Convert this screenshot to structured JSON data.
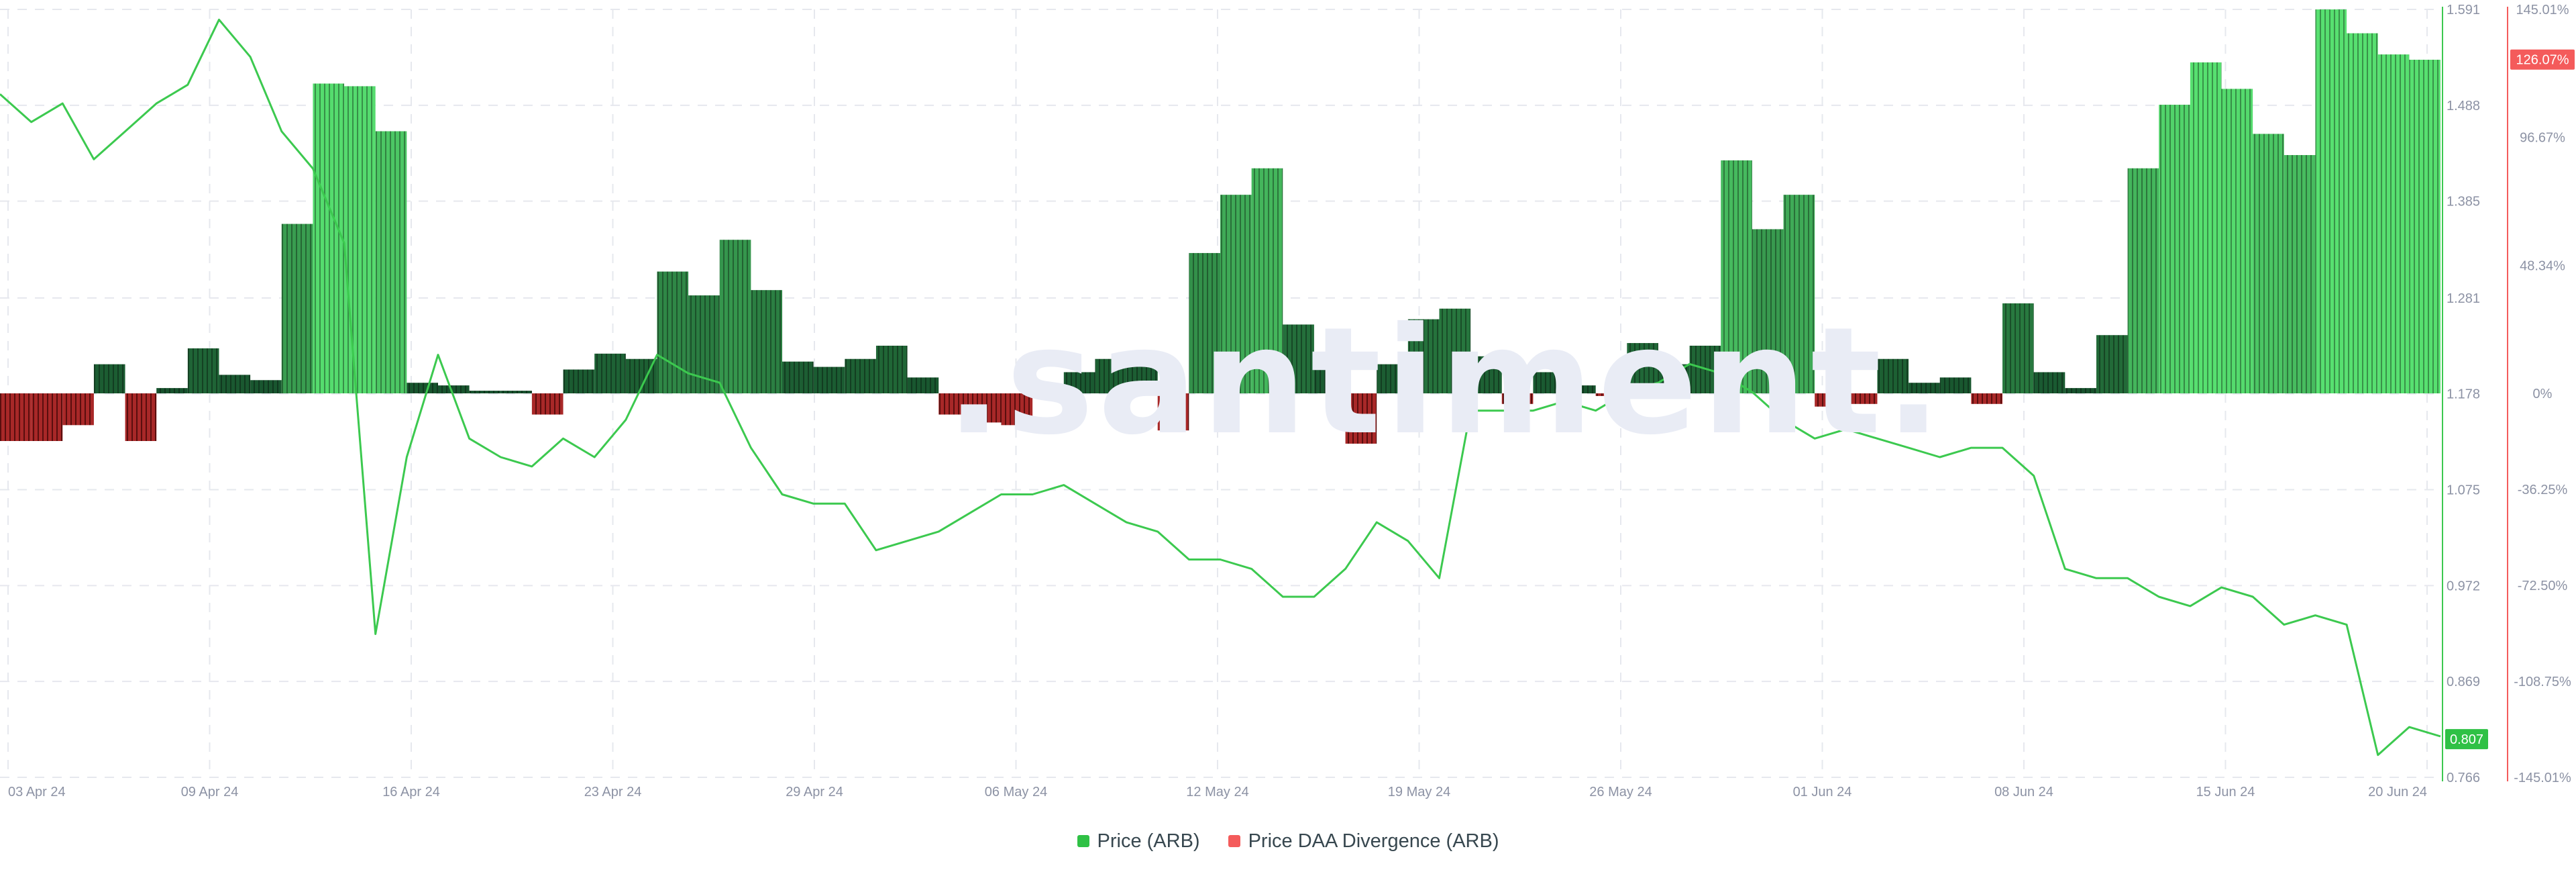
{
  "watermark": ".santiment.",
  "legend": {
    "price_label": "Price (ARB)",
    "divergence_label": "Price DAA Divergence (ARB)"
  },
  "colors": {
    "price_line": "#3cc94f",
    "price_badge": "#2fc145",
    "div_positive_light": "#57e070",
    "div_positive_dark": "#16502c",
    "div_negative": "#a82828",
    "div_badge": "#f45b5b",
    "div_axis": "#f45b5b",
    "grid": "#e6e8ee",
    "tick_text": "#8c92a4"
  },
  "chart_data": {
    "type": "line+bar",
    "x_tick_labels": [
      "03 Apr 24",
      "09 Apr 24",
      "16 Apr 24",
      "23 Apr 24",
      "29 Apr 24",
      "06 May 24",
      "12 May 24",
      "19 May 24",
      "26 May 24",
      "01 Jun 24",
      "08 Jun 24",
      "15 Jun 24",
      "20 Jun 24"
    ],
    "x_range": [
      "2024-04-03",
      "2024-06-20"
    ],
    "price_axis": {
      "ticks": [
        "1.591",
        "1.488",
        "1.385",
        "1.281",
        "1.178",
        "1.075",
        "0.972",
        "0.869",
        "0.766"
      ],
      "range": [
        0.766,
        1.591
      ],
      "current_value": "0.807"
    },
    "divergence_axis": {
      "ticks": [
        "145.01%",
        "96.67%",
        "48.34%",
        "0%",
        "-36.25%",
        "-72.50%",
        "-108.75%",
        "-145.01%"
      ],
      "range": [
        -145.01,
        145.01
      ],
      "current_value": "126.07%"
    },
    "series": [
      {
        "name": "Price (ARB)",
        "type": "line",
        "points": [
          [
            "2024-04-03",
            1.5
          ],
          [
            "2024-04-04",
            1.47
          ],
          [
            "2024-04-05",
            1.49
          ],
          [
            "2024-04-06",
            1.43
          ],
          [
            "2024-04-07",
            1.46
          ],
          [
            "2024-04-08",
            1.49
          ],
          [
            "2024-04-09",
            1.51
          ],
          [
            "2024-04-10",
            1.58
          ],
          [
            "2024-04-11",
            1.54
          ],
          [
            "2024-04-12",
            1.46
          ],
          [
            "2024-04-13",
            1.42
          ],
          [
            "2024-04-14",
            1.34
          ],
          [
            "2024-04-15",
            0.92
          ],
          [
            "2024-04-16",
            1.11
          ],
          [
            "2024-04-17",
            1.22
          ],
          [
            "2024-04-18",
            1.13
          ],
          [
            "2024-04-19",
            1.11
          ],
          [
            "2024-04-20",
            1.1
          ],
          [
            "2024-04-21",
            1.13
          ],
          [
            "2024-04-22",
            1.11
          ],
          [
            "2024-04-23",
            1.15
          ],
          [
            "2024-04-24",
            1.22
          ],
          [
            "2024-04-25",
            1.2
          ],
          [
            "2024-04-26",
            1.19
          ],
          [
            "2024-04-27",
            1.12
          ],
          [
            "2024-04-28",
            1.07
          ],
          [
            "2024-04-29",
            1.06
          ],
          [
            "2024-04-30",
            1.06
          ],
          [
            "2024-05-01",
            1.01
          ],
          [
            "2024-05-02",
            1.02
          ],
          [
            "2024-05-03",
            1.03
          ],
          [
            "2024-05-04",
            1.05
          ],
          [
            "2024-05-05",
            1.07
          ],
          [
            "2024-05-06",
            1.07
          ],
          [
            "2024-05-07",
            1.08
          ],
          [
            "2024-05-08",
            1.06
          ],
          [
            "2024-05-09",
            1.04
          ],
          [
            "2024-05-10",
            1.03
          ],
          [
            "2024-05-11",
            1.0
          ],
          [
            "2024-05-12",
            1.0
          ],
          [
            "2024-05-13",
            0.99
          ],
          [
            "2024-05-14",
            0.96
          ],
          [
            "2024-05-15",
            0.96
          ],
          [
            "2024-05-16",
            0.99
          ],
          [
            "2024-05-17",
            1.04
          ],
          [
            "2024-05-18",
            1.02
          ],
          [
            "2024-05-19",
            0.98
          ],
          [
            "2024-05-20",
            1.16
          ],
          [
            "2024-05-21",
            1.16
          ],
          [
            "2024-05-22",
            1.16
          ],
          [
            "2024-05-23",
            1.17
          ],
          [
            "2024-05-24",
            1.16
          ],
          [
            "2024-05-25",
            1.18
          ],
          [
            "2024-05-26",
            1.19
          ],
          [
            "2024-05-27",
            1.21
          ],
          [
            "2024-05-28",
            1.2
          ],
          [
            "2024-05-29",
            1.18
          ],
          [
            "2024-05-30",
            1.15
          ],
          [
            "2024-05-31",
            1.13
          ],
          [
            "2024-06-01",
            1.14
          ],
          [
            "2024-06-02",
            1.13
          ],
          [
            "2024-06-03",
            1.12
          ],
          [
            "2024-06-04",
            1.11
          ],
          [
            "2024-06-05",
            1.12
          ],
          [
            "2024-06-06",
            1.12
          ],
          [
            "2024-06-07",
            1.09
          ],
          [
            "2024-06-08",
            0.99
          ],
          [
            "2024-06-09",
            0.98
          ],
          [
            "2024-06-10",
            0.98
          ],
          [
            "2024-06-11",
            0.96
          ],
          [
            "2024-06-12",
            0.95
          ],
          [
            "2024-06-13",
            0.97
          ],
          [
            "2024-06-14",
            0.96
          ],
          [
            "2024-06-15",
            0.93
          ],
          [
            "2024-06-16",
            0.94
          ],
          [
            "2024-06-17",
            0.93
          ],
          [
            "2024-06-18",
            0.79
          ],
          [
            "2024-06-19",
            0.82
          ],
          [
            "2024-06-20",
            0.81
          ]
        ]
      },
      {
        "name": "Price DAA Divergence (ARB)",
        "type": "bar",
        "points": [
          [
            "2024-04-03",
            -18
          ],
          [
            "2024-04-04",
            -18
          ],
          [
            "2024-04-05",
            -12
          ],
          [
            "2024-04-06",
            11
          ],
          [
            "2024-04-07",
            -18
          ],
          [
            "2024-04-08",
            2
          ],
          [
            "2024-04-09",
            17
          ],
          [
            "2024-04-10",
            7
          ],
          [
            "2024-04-11",
            5
          ],
          [
            "2024-04-12",
            64
          ],
          [
            "2024-04-13",
            117
          ],
          [
            "2024-04-14",
            116
          ],
          [
            "2024-04-15",
            99
          ],
          [
            "2024-04-16",
            4
          ],
          [
            "2024-04-17",
            3
          ],
          [
            "2024-04-18",
            1
          ],
          [
            "2024-04-19",
            1
          ],
          [
            "2024-04-20",
            -8
          ],
          [
            "2024-04-21",
            9
          ],
          [
            "2024-04-22",
            15
          ],
          [
            "2024-04-23",
            13
          ],
          [
            "2024-04-24",
            46
          ],
          [
            "2024-04-25",
            37
          ],
          [
            "2024-04-26",
            58
          ],
          [
            "2024-04-27",
            39
          ],
          [
            "2024-04-28",
            12
          ],
          [
            "2024-04-29",
            10
          ],
          [
            "2024-04-30",
            13
          ],
          [
            "2024-05-01",
            18
          ],
          [
            "2024-05-02",
            6
          ],
          [
            "2024-05-03",
            -8
          ],
          [
            "2024-05-04",
            -11
          ],
          [
            "2024-05-05",
            -12
          ],
          [
            "2024-05-06",
            -1
          ],
          [
            "2024-05-07",
            8
          ],
          [
            "2024-05-08",
            13
          ],
          [
            "2024-05-09",
            12
          ],
          [
            "2024-05-10",
            -14
          ],
          [
            "2024-05-11",
            53
          ],
          [
            "2024-05-12",
            75
          ],
          [
            "2024-05-13",
            85
          ],
          [
            "2024-05-14",
            26
          ],
          [
            "2024-05-15",
            9
          ],
          [
            "2024-05-16",
            -19
          ],
          [
            "2024-05-17",
            11
          ],
          [
            "2024-05-18",
            28
          ],
          [
            "2024-05-19",
            32
          ],
          [
            "2024-05-20",
            14
          ],
          [
            "2024-05-21",
            -4
          ],
          [
            "2024-05-22",
            8
          ],
          [
            "2024-05-23",
            3
          ],
          [
            "2024-05-24",
            -1
          ],
          [
            "2024-05-25",
            19
          ],
          [
            "2024-05-26",
            11
          ],
          [
            "2024-05-27",
            18
          ],
          [
            "2024-05-28",
            88
          ],
          [
            "2024-05-29",
            62
          ],
          [
            "2024-05-30",
            75
          ],
          [
            "2024-05-31",
            -5
          ],
          [
            "2024-06-01",
            -4
          ],
          [
            "2024-06-02",
            13
          ],
          [
            "2024-06-03",
            4
          ],
          [
            "2024-06-04",
            6
          ],
          [
            "2024-06-05",
            -4
          ],
          [
            "2024-06-06",
            34
          ],
          [
            "2024-06-07",
            8
          ],
          [
            "2024-06-08",
            2
          ],
          [
            "2024-06-09",
            22
          ],
          [
            "2024-06-10",
            85
          ],
          [
            "2024-06-11",
            109
          ],
          [
            "2024-06-12",
            125
          ],
          [
            "2024-06-13",
            115
          ],
          [
            "2024-06-14",
            98
          ],
          [
            "2024-06-15",
            90
          ],
          [
            "2024-06-16",
            145
          ],
          [
            "2024-06-17",
            136
          ],
          [
            "2024-06-18",
            128
          ],
          [
            "2024-06-19",
            126
          ]
        ]
      }
    ],
    "grid": true,
    "legend_position": "bottom-center"
  }
}
